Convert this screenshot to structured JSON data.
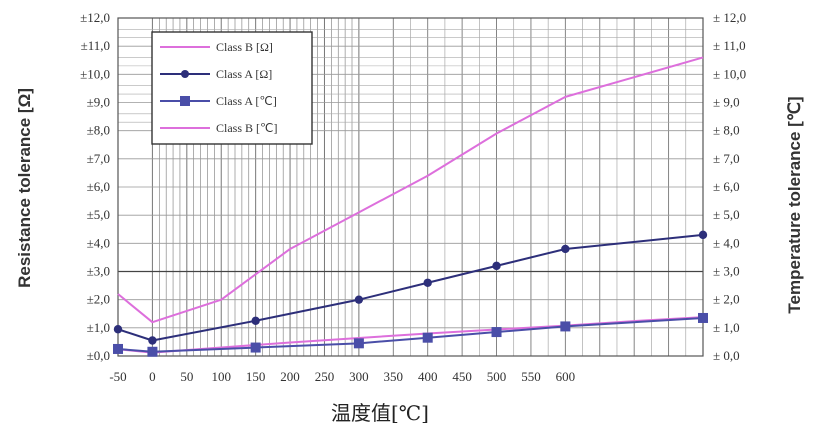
{
  "chart_data": {
    "type": "line",
    "xlabel": "温度值[℃]",
    "ylabel_left": "Resistance tolerance [Ω]",
    "ylabel_right": "Temperature tolerance [℃]",
    "x_ticks": [
      "-50",
      "0",
      "50",
      "100",
      "150",
      "200",
      "250",
      "300",
      "350",
      "400",
      "450",
      "500",
      "550",
      "600"
    ],
    "y_left_ticks": [
      "±0,0",
      "±1,0",
      "±2,0",
      "±3,0",
      "±4,0",
      "±5,0",
      "±6,0",
      "±7,0",
      "±8,0",
      "±9,0",
      "±10,0",
      "±11,0",
      "±12,0"
    ],
    "y_right_ticks": [
      "± 0,0",
      "± 1,0",
      "± 2,0",
      "± 3,0",
      "± 4,0",
      "± 5,0",
      "± 6,0",
      "± 7,0",
      "± 8,0",
      "± 9,0",
      "± 10,0",
      "± 11,0",
      "± 12,0"
    ],
    "xlim": [
      -50,
      800
    ],
    "ylim": [
      0,
      12
    ],
    "legend_position": "top-left",
    "grid": true,
    "series": [
      {
        "name": "Class B [Ω]",
        "color": "#dd6fdc",
        "marker": "none",
        "x": [
          -50,
          0,
          100,
          200,
          300,
          400,
          500,
          600,
          700,
          800
        ],
        "y": [
          0.24,
          0.12,
          0.3,
          0.48,
          0.64,
          0.8,
          0.94,
          1.08,
          1.24,
          1.38
        ]
      },
      {
        "name": "Class A [Ω]",
        "color": "#2d2f7a",
        "marker": "dot",
        "x": [
          -50,
          0,
          150,
          300,
          400,
          500,
          600,
          800
        ],
        "y": [
          0.95,
          0.55,
          1.25,
          2.0,
          2.6,
          3.2,
          3.8,
          4.3
        ]
      },
      {
        "name": "Class A [℃]",
        "color": "#4a4ea8",
        "marker": "square",
        "x": [
          -50,
          0,
          150,
          300,
          400,
          500,
          600,
          800
        ],
        "y": [
          0.25,
          0.15,
          0.3,
          0.45,
          0.65,
          0.85,
          1.05,
          1.35
        ]
      },
      {
        "name": "Class B [℃]",
        "color": "#dd6fdc",
        "marker": "none",
        "x": [
          -50,
          0,
          100,
          200,
          300,
          400,
          500,
          600,
          700,
          800
        ],
        "y": [
          2.2,
          1.2,
          2.0,
          3.8,
          5.1,
          6.4,
          7.9,
          9.2,
          9.9,
          10.6
        ]
      }
    ]
  }
}
